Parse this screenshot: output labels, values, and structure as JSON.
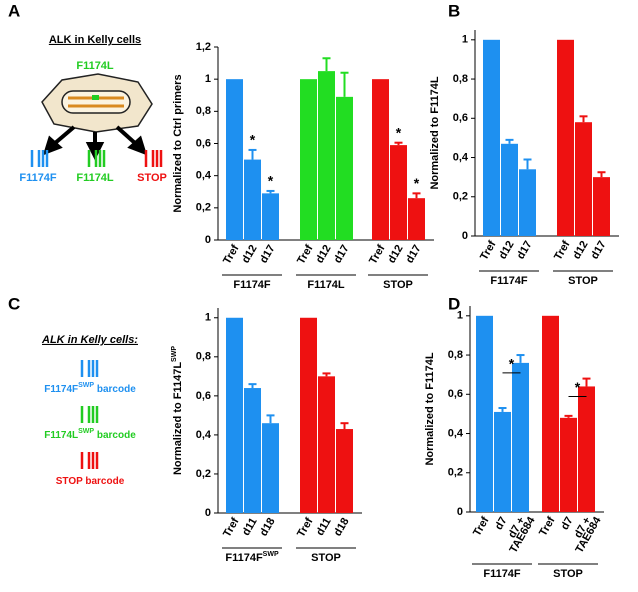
{
  "panel_labels": [
    "A",
    "B",
    "C",
    "D"
  ],
  "diagram_a": {
    "title": "ALK in Kelly cells",
    "mutation": "F1174L",
    "mutation_color": "#22cc22",
    "barcodes": [
      {
        "label": "F1174F",
        "color": "#1e90f0"
      },
      {
        "label": "F1174L",
        "color": "#22cc22"
      },
      {
        "label": "STOP",
        "color": "#ee1111"
      }
    ]
  },
  "diagram_c": {
    "title": "ALK in Kelly cells:",
    "barcodes": [
      {
        "label": "F1174F",
        "sup": "SWP",
        "suffix": " barcode",
        "color": "#1e90f0"
      },
      {
        "label": "F1174L",
        "sup": "SWP",
        "suffix": " barcode",
        "color": "#22cc22"
      },
      {
        "label": "STOP barcode",
        "color": "#ee1111"
      }
    ]
  },
  "chart_data": [
    {
      "type": "bar",
      "ylabel": "Normalized to Ctrl primers",
      "ylim": [
        0,
        1.2
      ],
      "yticks": [
        0,
        {
          "value": 0.2,
          "label": "0,2"
        },
        {
          "value": 0.4,
          "label": "0,4"
        },
        {
          "value": 0.6,
          "label": "0,6"
        },
        {
          "value": 0.8,
          "label": "0,8"
        },
        1,
        {
          "value": 1.2,
          "label": "1,2"
        }
      ],
      "groups": [
        {
          "name": "F1174F",
          "color": "#1e90f0",
          "categories": [
            "Tref",
            "d12",
            "d17"
          ],
          "values": [
            1,
            0.5,
            0.29
          ],
          "errors": [
            null,
            0.06,
            0.015
          ],
          "star": "*",
          "star_bars": [
            1,
            2
          ]
        },
        {
          "name": "F1174L",
          "color": "#22dd22",
          "categories": [
            "Tref",
            "d12",
            "d17"
          ],
          "values": [
            1,
            1.05,
            0.89
          ],
          "errors": [
            null,
            0.08,
            0.15
          ]
        },
        {
          "name": "STOP",
          "color": "#ee1111",
          "categories": [
            "Tref",
            "d12",
            "d17"
          ],
          "values": [
            1,
            0.59,
            0.26
          ],
          "errors": [
            null,
            0.015,
            0.03
          ],
          "star": "*",
          "star_bars": [
            1,
            2
          ]
        }
      ]
    },
    {
      "type": "bar",
      "ylabel": "Normalized to F1174L",
      "ylim": [
        0,
        1.05
      ],
      "yticks": [
        0,
        {
          "value": 0.2,
          "label": "0,2"
        },
        {
          "value": 0.4,
          "label": "0,4"
        },
        {
          "value": 0.6,
          "label": "0,6"
        },
        {
          "value": 0.8,
          "label": "0,8"
        },
        1
      ],
      "groups": [
        {
          "name": "F1174F",
          "color": "#1e90f0",
          "categories": [
            "Tref",
            "d12",
            "d17"
          ],
          "values": [
            1,
            0.47,
            0.34
          ],
          "errors": [
            null,
            0.02,
            0.05
          ]
        },
        {
          "name": "STOP",
          "color": "#ee1111",
          "categories": [
            "Tref",
            "d12",
            "d17"
          ],
          "values": [
            1,
            0.58,
            0.3
          ],
          "errors": [
            null,
            0.03,
            0.025
          ]
        }
      ]
    },
    {
      "type": "bar",
      "ylabel": "Normalized to F1147L",
      "ylabel_sup": "SWP",
      "ylim": [
        0,
        1.05
      ],
      "yticks": [
        0,
        {
          "value": 0.2,
          "label": "0,2"
        },
        {
          "value": 0.4,
          "label": "0,4"
        },
        {
          "value": 0.6,
          "label": "0,6"
        },
        {
          "value": 0.8,
          "label": "0,8"
        },
        1
      ],
      "groups": [
        {
          "name": "F1174F",
          "name_sup": "SWP",
          "color": "#1e90f0",
          "categories": [
            "Tref",
            "d11",
            "d18"
          ],
          "values": [
            1,
            0.64,
            0.46
          ],
          "errors": [
            null,
            0.02,
            0.04
          ]
        },
        {
          "name": "STOP",
          "color": "#ee1111",
          "categories": [
            "Tref",
            "d11",
            "d18"
          ],
          "values": [
            1,
            0.7,
            0.43
          ],
          "errors": [
            null,
            0.015,
            0.03
          ]
        }
      ]
    },
    {
      "type": "bar",
      "ylabel": "Normalized to F1174L",
      "ylim": [
        0,
        1.05
      ],
      "yticks": [
        0,
        {
          "value": 0.2,
          "label": "0,2"
        },
        {
          "value": 0.4,
          "label": "0,4"
        },
        {
          "value": 0.6,
          "label": "0,6"
        },
        {
          "value": 0.8,
          "label": "0,8"
        },
        1
      ],
      "groups": [
        {
          "name": "F1174F",
          "color": "#1e90f0",
          "categories": [
            "Tref",
            "d7",
            [
              "d7 +",
              "TAE684"
            ]
          ],
          "values": [
            1,
            0.51,
            0.76
          ],
          "errors": [
            null,
            0.02,
            0.04
          ],
          "star": "*",
          "bracket": [
            1,
            2
          ]
        },
        {
          "name": "STOP",
          "color": "#ee1111",
          "categories": [
            "Tref",
            "d7",
            [
              "d7 +",
              "TAE684"
            ]
          ],
          "values": [
            1,
            0.48,
            0.64
          ],
          "errors": [
            null,
            0.01,
            0.04
          ],
          "star": "*",
          "bracket": [
            1,
            2
          ]
        }
      ]
    }
  ]
}
